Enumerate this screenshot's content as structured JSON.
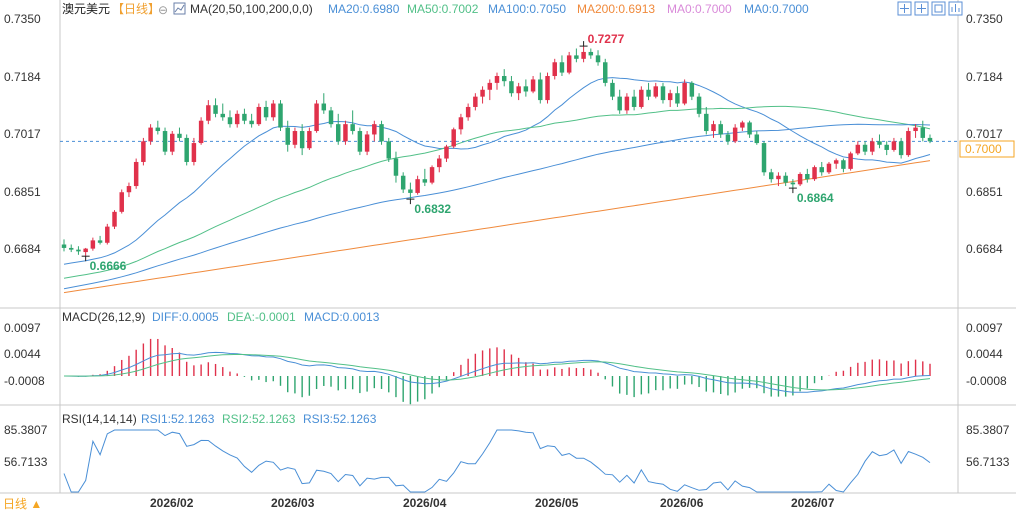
{
  "header": {
    "symbol": "澳元美元",
    "period": "【日线】",
    "ma_label": "MA(20,50,100,200,0,0)",
    "ma_values": [
      {
        "text": "MA20:0.6980",
        "color": "#4a8fd6"
      },
      {
        "text": "MA50:0.7002",
        "color": "#52c088"
      },
      {
        "text": "MA100:0.7050",
        "color": "#4a8fd6"
      },
      {
        "text": "MA200:0.6913",
        "color": "#f08a3c"
      },
      {
        "text": "MA0:0.7000",
        "color": "#d98ad9"
      },
      {
        "text": "MA0:0.7000",
        "color": "#4a8fd6"
      }
    ]
  },
  "price_panel": {
    "y_ticks_left": [
      "0.7350",
      "0.7184",
      "0.7017",
      "0.6851",
      "0.6684"
    ],
    "y_ticks_right": [
      "0.7350",
      "0.7184",
      "0.7017",
      "0.6851",
      "0.6684"
    ],
    "current_price": "0.7000",
    "annotations": [
      {
        "text": "0.7277",
        "color": "#e0314b"
      },
      {
        "text": "0.6832",
        "color": "#2ea56f"
      },
      {
        "text": "0.6864",
        "color": "#2ea56f"
      },
      {
        "text": "0.6666",
        "color": "#2ea56f"
      }
    ]
  },
  "macd_panel": {
    "label": "MACD(26,12,9)",
    "diff": "DIFF:0.0005",
    "dea": "DEA:-0.0001",
    "macd": "MACD:0.0013",
    "y_ticks_left": [
      "0.0097",
      "0.0044",
      "-0.0008"
    ],
    "y_ticks_right": [
      "0.0097",
      "0.0044",
      "-0.0008"
    ]
  },
  "rsi_panel": {
    "label": "RSI(14,14,14)",
    "rsi1": "RSI1:52.1263",
    "rsi2": "RSI2:52.1263",
    "rsi3": "RSI3:52.1263",
    "y_ticks_left": [
      "85.3807",
      "56.7133"
    ],
    "y_ticks_right": [
      "85.3807",
      "56.7133"
    ]
  },
  "x_axis": {
    "labels": [
      "2026/02",
      "2026/03",
      "2026/04",
      "2026/05",
      "2026/06",
      "2026/07"
    ]
  },
  "footer": {
    "period_button": "日线 ▲"
  },
  "colors": {
    "up": "#e0314b",
    "down": "#2ea56f",
    "ma20": "#4a8fd6",
    "ma50": "#52c088",
    "ma100": "#4a8fd6",
    "ma200": "#f08a3c",
    "last_price_line": "#4a8fd6",
    "last_price_box": "#f5a623"
  },
  "toolbar_icons": [
    "zoom-in-icon",
    "zoom-out-icon",
    "fit-icon",
    "bar-chart-icon",
    "list-icon"
  ],
  "chart_data": [
    {
      "type": "candlestick",
      "title": "澳元美元 日线",
      "x_range": [
        "2026-01",
        "2026-07"
      ],
      "ylim": [
        0.658,
        0.735
      ],
      "ohlc": [
        [
          0.67,
          0.6715,
          0.668,
          0.669
        ],
        [
          0.669,
          0.67,
          0.6678,
          0.6685
        ],
        [
          0.6685,
          0.6695,
          0.667,
          0.668
        ],
        [
          0.6678,
          0.669,
          0.6666,
          0.6688
        ],
        [
          0.6688,
          0.672,
          0.6682,
          0.6712
        ],
        [
          0.6712,
          0.6725,
          0.67,
          0.6705
        ],
        [
          0.6705,
          0.676,
          0.67,
          0.6752
        ],
        [
          0.6752,
          0.68,
          0.6745,
          0.6795
        ],
        [
          0.6795,
          0.686,
          0.679,
          0.6852
        ],
        [
          0.6852,
          0.688,
          0.6838,
          0.687
        ],
        [
          0.687,
          0.695,
          0.6862,
          0.694
        ],
        [
          0.694,
          0.701,
          0.693,
          0.7
        ],
        [
          0.7,
          0.705,
          0.699,
          0.704
        ],
        [
          0.704,
          0.706,
          0.702,
          0.703
        ],
        [
          0.703,
          0.704,
          0.696,
          0.697
        ],
        [
          0.697,
          0.703,
          0.696,
          0.7022
        ],
        [
          0.7022,
          0.704,
          0.7,
          0.701
        ],
        [
          0.701,
          0.702,
          0.693,
          0.694
        ],
        [
          0.694,
          0.701,
          0.693,
          0.6995
        ],
        [
          0.6995,
          0.707,
          0.699,
          0.706
        ],
        [
          0.706,
          0.712,
          0.705,
          0.7105
        ],
        [
          0.7105,
          0.7125,
          0.707,
          0.708
        ],
        [
          0.708,
          0.711,
          0.706,
          0.707
        ],
        [
          0.707,
          0.709,
          0.704,
          0.705
        ],
        [
          0.705,
          0.709,
          0.704,
          0.708
        ],
        [
          0.708,
          0.7095,
          0.705,
          0.706
        ],
        [
          0.706,
          0.708,
          0.704,
          0.705
        ],
        [
          0.705,
          0.711,
          0.7045,
          0.71
        ],
        [
          0.71,
          0.7118,
          0.706,
          0.707
        ],
        [
          0.707,
          0.712,
          0.706,
          0.711
        ],
        [
          0.711,
          0.712,
          0.703,
          0.704
        ],
        [
          0.704,
          0.706,
          0.697,
          0.699
        ],
        [
          0.699,
          0.704,
          0.698,
          0.703
        ],
        [
          0.703,
          0.705,
          0.696,
          0.698
        ],
        [
          0.698,
          0.704,
          0.6975,
          0.703
        ],
        [
          0.703,
          0.712,
          0.7025,
          0.711
        ],
        [
          0.711,
          0.714,
          0.708,
          0.709
        ],
        [
          0.709,
          0.71,
          0.704,
          0.705
        ],
        [
          0.705,
          0.708,
          0.699,
          0.7
        ],
        [
          0.7,
          0.706,
          0.699,
          0.705
        ],
        [
          0.705,
          0.709,
          0.702,
          0.703
        ],
        [
          0.703,
          0.704,
          0.696,
          0.697
        ],
        [
          0.697,
          0.703,
          0.696,
          0.702
        ],
        [
          0.702,
          0.706,
          0.7,
          0.705
        ],
        [
          0.705,
          0.706,
          0.699,
          0.7
        ],
        [
          0.7,
          0.701,
          0.694,
          0.695
        ],
        [
          0.695,
          0.697,
          0.688,
          0.69
        ],
        [
          0.69,
          0.691,
          0.685,
          0.686
        ],
        [
          0.686,
          0.688,
          0.6832,
          0.685
        ],
        [
          0.685,
          0.69,
          0.6845,
          0.689
        ],
        [
          0.689,
          0.692,
          0.687,
          0.688
        ],
        [
          0.688,
          0.693,
          0.6875,
          0.6925
        ],
        [
          0.6925,
          0.696,
          0.691,
          0.695
        ],
        [
          0.695,
          0.699,
          0.694,
          0.6985
        ],
        [
          0.6985,
          0.704,
          0.698,
          0.7035
        ],
        [
          0.7035,
          0.708,
          0.702,
          0.707
        ],
        [
          0.707,
          0.711,
          0.706,
          0.71
        ],
        [
          0.71,
          0.714,
          0.709,
          0.713
        ],
        [
          0.713,
          0.716,
          0.711,
          0.715
        ],
        [
          0.715,
          0.718,
          0.712,
          0.717
        ],
        [
          0.717,
          0.72,
          0.715,
          0.719
        ],
        [
          0.719,
          0.721,
          0.716,
          0.7175
        ],
        [
          0.7175,
          0.719,
          0.713,
          0.714
        ],
        [
          0.714,
          0.717,
          0.712,
          0.716
        ],
        [
          0.716,
          0.718,
          0.713,
          0.7145
        ],
        [
          0.7145,
          0.719,
          0.714,
          0.718
        ],
        [
          0.718,
          0.72,
          0.711,
          0.712
        ],
        [
          0.712,
          0.72,
          0.711,
          0.719
        ],
        [
          0.719,
          0.724,
          0.718,
          0.723
        ],
        [
          0.723,
          0.725,
          0.719,
          0.72
        ],
        [
          0.72,
          0.726,
          0.7195,
          0.725
        ],
        [
          0.725,
          0.727,
          0.723,
          0.724
        ],
        [
          0.724,
          0.7277,
          0.723,
          0.726
        ],
        [
          0.726,
          0.727,
          0.724,
          0.725
        ],
        [
          0.725,
          0.7265,
          0.722,
          0.723
        ],
        [
          0.723,
          0.724,
          0.716,
          0.717
        ],
        [
          0.717,
          0.718,
          0.712,
          0.713
        ],
        [
          0.713,
          0.715,
          0.708,
          0.709
        ],
        [
          0.709,
          0.714,
          0.708,
          0.713
        ],
        [
          0.713,
          0.715,
          0.709,
          0.71
        ],
        [
          0.71,
          0.716,
          0.7095,
          0.715
        ],
        [
          0.715,
          0.717,
          0.712,
          0.713
        ],
        [
          0.713,
          0.717,
          0.7125,
          0.716
        ],
        [
          0.716,
          0.717,
          0.711,
          0.712
        ],
        [
          0.712,
          0.715,
          0.71,
          0.714
        ],
        [
          0.714,
          0.716,
          0.71,
          0.711
        ],
        [
          0.711,
          0.718,
          0.7105,
          0.717
        ],
        [
          0.717,
          0.7175,
          0.712,
          0.713
        ],
        [
          0.713,
          0.714,
          0.707,
          0.708
        ],
        [
          0.708,
          0.71,
          0.702,
          0.703
        ],
        [
          0.703,
          0.706,
          0.701,
          0.705
        ],
        [
          0.705,
          0.706,
          0.701,
          0.702
        ],
        [
          0.702,
          0.703,
          0.699,
          0.7
        ],
        [
          0.7,
          0.705,
          0.6995,
          0.704
        ],
        [
          0.704,
          0.706,
          0.703,
          0.7055
        ],
        [
          0.7055,
          0.706,
          0.701,
          0.702
        ],
        [
          0.702,
          0.703,
          0.699,
          0.6995
        ],
        [
          0.6995,
          0.7,
          0.69,
          0.691
        ],
        [
          0.691,
          0.692,
          0.688,
          0.689
        ],
        [
          0.689,
          0.691,
          0.687,
          0.69
        ],
        [
          0.69,
          0.691,
          0.687,
          0.688
        ],
        [
          0.688,
          0.689,
          0.6864,
          0.6875
        ],
        [
          0.6875,
          0.691,
          0.687,
          0.6905
        ],
        [
          0.6905,
          0.692,
          0.688,
          0.689
        ],
        [
          0.689,
          0.693,
          0.6885,
          0.6925
        ],
        [
          0.6925,
          0.694,
          0.69,
          0.691
        ],
        [
          0.691,
          0.694,
          0.6905,
          0.6935
        ],
        [
          0.6935,
          0.695,
          0.692,
          0.6945
        ],
        [
          0.6945,
          0.695,
          0.691,
          0.692
        ],
        [
          0.692,
          0.697,
          0.6915,
          0.6965
        ],
        [
          0.6965,
          0.7,
          0.696,
          0.699
        ],
        [
          0.699,
          0.7,
          0.696,
          0.697
        ],
        [
          0.697,
          0.701,
          0.696,
          0.7
        ],
        [
          0.7,
          0.702,
          0.698,
          0.699
        ],
        [
          0.699,
          0.7,
          0.696,
          0.6975
        ],
        [
          0.6975,
          0.701,
          0.697,
          0.7
        ],
        [
          0.7,
          0.701,
          0.695,
          0.696
        ],
        [
          0.696,
          0.704,
          0.6955,
          0.703
        ],
        [
          0.703,
          0.705,
          0.701,
          0.704
        ],
        [
          0.704,
          0.706,
          0.7,
          0.701
        ],
        [
          0.701,
          0.702,
          0.6995,
          0.7
        ]
      ],
      "ma_lines": [
        "MA20",
        "MA50",
        "MA100",
        "MA200"
      ],
      "reference_line": 0.7,
      "point_labels": [
        {
          "text": "0.7277",
          "value": 0.7277
        },
        {
          "text": "0.6832",
          "value": 0.6832
        },
        {
          "text": "0.6864",
          "value": 0.6864
        },
        {
          "text": "0.6666",
          "value": 0.6666
        }
      ]
    },
    {
      "type": "line",
      "title": "MACD(26,12,9)",
      "series": [
        {
          "name": "DIFF"
        },
        {
          "name": "DEA"
        },
        {
          "name": "MACD"
        }
      ],
      "ylim": [
        -0.005,
        0.01
      ],
      "last_values": {
        "DIFF": 0.0005,
        "DEA": -0.0001,
        "MACD": 0.0013
      }
    },
    {
      "type": "line",
      "title": "RSI(14,14,14)",
      "series": [
        {
          "name": "RSI1"
        },
        {
          "name": "RSI2"
        },
        {
          "name": "RSI3"
        }
      ],
      "ylim": [
        30,
        90
      ],
      "last_values": {
        "RSI1": 52.1263,
        "RSI2": 52.1263,
        "RSI3": 52.1263
      }
    }
  ]
}
